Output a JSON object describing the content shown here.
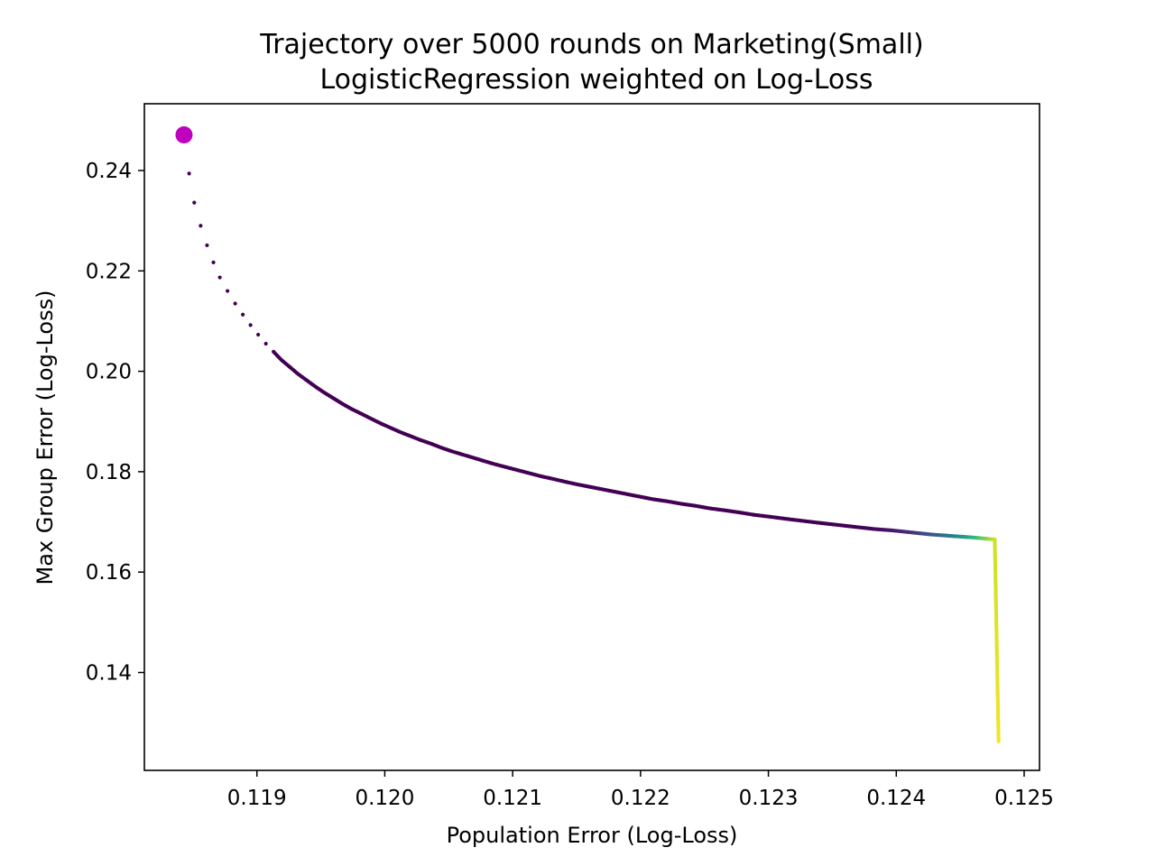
{
  "chart_data": {
    "type": "scatter",
    "title": "Trajectory over 5000 rounds on Marketing(Small)",
    "subtitle": "LogisticRegression weighted on Log-Loss",
    "xlabel": "Population Error (Log-Loss)",
    "ylabel": "Max Group Error (Log-Loss)",
    "xlim": [
      0.11812,
      0.12512
    ],
    "ylim": [
      0.1205,
      0.2533
    ],
    "x_ticks": [
      {
        "value": 0.119,
        "label": "0.119"
      },
      {
        "value": 0.12,
        "label": "0.120"
      },
      {
        "value": 0.121,
        "label": "0.121"
      },
      {
        "value": 0.122,
        "label": "0.122"
      },
      {
        "value": 0.123,
        "label": "0.123"
      },
      {
        "value": 0.124,
        "label": "0.124"
      },
      {
        "value": 0.125,
        "label": "0.125"
      }
    ],
    "y_ticks": [
      {
        "value": 0.14,
        "label": "0.14"
      },
      {
        "value": 0.16,
        "label": "0.16"
      },
      {
        "value": 0.18,
        "label": "0.18"
      },
      {
        "value": 0.2,
        "label": "0.20"
      },
      {
        "value": 0.22,
        "label": "0.22"
      },
      {
        "value": 0.24,
        "label": "0.24"
      }
    ],
    "grid": false,
    "colormap": "viridis",
    "start_point": {
      "x": 0.11843,
      "y": 0.2471,
      "color": "#bf00bf"
    },
    "trajectory_points": [
      [
        0.11847,
        0.2394
      ],
      [
        0.11851,
        0.2336
      ],
      [
        0.11856,
        0.229
      ],
      [
        0.11861,
        0.2251
      ],
      [
        0.11866,
        0.2217
      ],
      [
        0.11871,
        0.2187
      ],
      [
        0.11877,
        0.216
      ],
      [
        0.11883,
        0.2135
      ],
      [
        0.11889,
        0.2113
      ],
      [
        0.11895,
        0.2092
      ],
      [
        0.11901,
        0.2073
      ],
      [
        0.11907,
        0.2055
      ],
      [
        0.11913,
        0.2039
      ],
      [
        0.11919,
        0.2023
      ],
      [
        0.11926,
        0.2008
      ],
      [
        0.11932,
        0.1995
      ],
      [
        0.11939,
        0.1982
      ],
      [
        0.11946,
        0.1969
      ],
      [
        0.11953,
        0.1957
      ],
      [
        0.1196,
        0.1946
      ],
      [
        0.11967,
        0.1935
      ],
      [
        0.11974,
        0.1925
      ],
      [
        0.11982,
        0.1915
      ],
      [
        0.11989,
        0.1906
      ],
      [
        0.11997,
        0.1896
      ],
      [
        0.12004,
        0.1888
      ],
      [
        0.12012,
        0.1879
      ],
      [
        0.1202,
        0.1871
      ],
      [
        0.12028,
        0.1863
      ],
      [
        0.12036,
        0.1856
      ],
      [
        0.12044,
        0.1848
      ],
      [
        0.12052,
        0.1841
      ],
      [
        0.12061,
        0.1834
      ],
      [
        0.12069,
        0.1828
      ],
      [
        0.12078,
        0.1821
      ],
      [
        0.12086,
        0.1815
      ],
      [
        0.12095,
        0.1809
      ],
      [
        0.12104,
        0.1803
      ],
      [
        0.12113,
        0.1797
      ],
      [
        0.12122,
        0.1791
      ],
      [
        0.12131,
        0.1786
      ],
      [
        0.12141,
        0.178
      ],
      [
        0.1215,
        0.1775
      ],
      [
        0.1216,
        0.177
      ],
      [
        0.1217,
        0.1765
      ],
      [
        0.1218,
        0.176
      ],
      [
        0.1219,
        0.1755
      ],
      [
        0.122,
        0.175
      ],
      [
        0.1221,
        0.1745
      ],
      [
        0.12221,
        0.1741
      ],
      [
        0.12232,
        0.1736
      ],
      [
        0.12243,
        0.1732
      ],
      [
        0.12254,
        0.1727
      ],
      [
        0.12266,
        0.1723
      ],
      [
        0.12277,
        0.1719
      ],
      [
        0.12289,
        0.1714
      ],
      [
        0.12302,
        0.171
      ],
      [
        0.12314,
        0.1706
      ],
      [
        0.12327,
        0.1702
      ],
      [
        0.1234,
        0.1698
      ],
      [
        0.12354,
        0.1694
      ],
      [
        0.12368,
        0.169
      ],
      [
        0.12382,
        0.1686
      ],
      [
        0.12397,
        0.1683
      ],
      [
        0.12412,
        0.1679
      ],
      [
        0.12427,
        0.1675
      ],
      [
        0.12443,
        0.1672
      ],
      [
        0.1246,
        0.1669
      ],
      [
        0.12477,
        0.1665
      ],
      [
        0.1248,
        0.1263
      ]
    ]
  }
}
